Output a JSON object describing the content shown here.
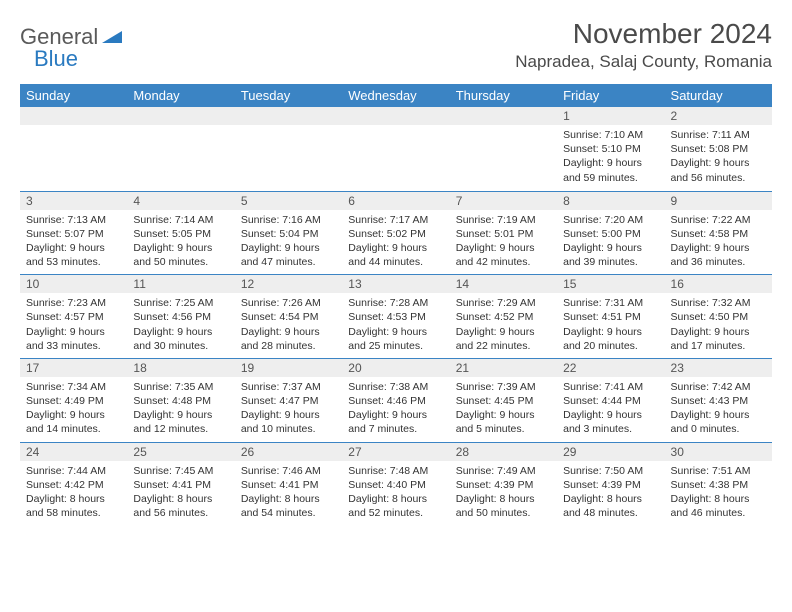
{
  "brand": {
    "part1": "General",
    "part2": "Blue"
  },
  "title": "November 2024",
  "location": "Napradea, Salaj County, Romania",
  "colors": {
    "header_bg": "#3b84c4",
    "header_text": "#ffffff",
    "daynum_bg": "#eeeeee",
    "row_border": "#3b84c4",
    "logo_blue": "#2a7ac0",
    "text": "#333333"
  },
  "weekdays": [
    "Sunday",
    "Monday",
    "Tuesday",
    "Wednesday",
    "Thursday",
    "Friday",
    "Saturday"
  ],
  "weeks": [
    [
      null,
      null,
      null,
      null,
      null,
      {
        "n": "1",
        "sunrise": "Sunrise: 7:10 AM",
        "sunset": "Sunset: 5:10 PM",
        "daylight": "Daylight: 9 hours and 59 minutes."
      },
      {
        "n": "2",
        "sunrise": "Sunrise: 7:11 AM",
        "sunset": "Sunset: 5:08 PM",
        "daylight": "Daylight: 9 hours and 56 minutes."
      }
    ],
    [
      {
        "n": "3",
        "sunrise": "Sunrise: 7:13 AM",
        "sunset": "Sunset: 5:07 PM",
        "daylight": "Daylight: 9 hours and 53 minutes."
      },
      {
        "n": "4",
        "sunrise": "Sunrise: 7:14 AM",
        "sunset": "Sunset: 5:05 PM",
        "daylight": "Daylight: 9 hours and 50 minutes."
      },
      {
        "n": "5",
        "sunrise": "Sunrise: 7:16 AM",
        "sunset": "Sunset: 5:04 PM",
        "daylight": "Daylight: 9 hours and 47 minutes."
      },
      {
        "n": "6",
        "sunrise": "Sunrise: 7:17 AM",
        "sunset": "Sunset: 5:02 PM",
        "daylight": "Daylight: 9 hours and 44 minutes."
      },
      {
        "n": "7",
        "sunrise": "Sunrise: 7:19 AM",
        "sunset": "Sunset: 5:01 PM",
        "daylight": "Daylight: 9 hours and 42 minutes."
      },
      {
        "n": "8",
        "sunrise": "Sunrise: 7:20 AM",
        "sunset": "Sunset: 5:00 PM",
        "daylight": "Daylight: 9 hours and 39 minutes."
      },
      {
        "n": "9",
        "sunrise": "Sunrise: 7:22 AM",
        "sunset": "Sunset: 4:58 PM",
        "daylight": "Daylight: 9 hours and 36 minutes."
      }
    ],
    [
      {
        "n": "10",
        "sunrise": "Sunrise: 7:23 AM",
        "sunset": "Sunset: 4:57 PM",
        "daylight": "Daylight: 9 hours and 33 minutes."
      },
      {
        "n": "11",
        "sunrise": "Sunrise: 7:25 AM",
        "sunset": "Sunset: 4:56 PM",
        "daylight": "Daylight: 9 hours and 30 minutes."
      },
      {
        "n": "12",
        "sunrise": "Sunrise: 7:26 AM",
        "sunset": "Sunset: 4:54 PM",
        "daylight": "Daylight: 9 hours and 28 minutes."
      },
      {
        "n": "13",
        "sunrise": "Sunrise: 7:28 AM",
        "sunset": "Sunset: 4:53 PM",
        "daylight": "Daylight: 9 hours and 25 minutes."
      },
      {
        "n": "14",
        "sunrise": "Sunrise: 7:29 AM",
        "sunset": "Sunset: 4:52 PM",
        "daylight": "Daylight: 9 hours and 22 minutes."
      },
      {
        "n": "15",
        "sunrise": "Sunrise: 7:31 AM",
        "sunset": "Sunset: 4:51 PM",
        "daylight": "Daylight: 9 hours and 20 minutes."
      },
      {
        "n": "16",
        "sunrise": "Sunrise: 7:32 AM",
        "sunset": "Sunset: 4:50 PM",
        "daylight": "Daylight: 9 hours and 17 minutes."
      }
    ],
    [
      {
        "n": "17",
        "sunrise": "Sunrise: 7:34 AM",
        "sunset": "Sunset: 4:49 PM",
        "daylight": "Daylight: 9 hours and 14 minutes."
      },
      {
        "n": "18",
        "sunrise": "Sunrise: 7:35 AM",
        "sunset": "Sunset: 4:48 PM",
        "daylight": "Daylight: 9 hours and 12 minutes."
      },
      {
        "n": "19",
        "sunrise": "Sunrise: 7:37 AM",
        "sunset": "Sunset: 4:47 PM",
        "daylight": "Daylight: 9 hours and 10 minutes."
      },
      {
        "n": "20",
        "sunrise": "Sunrise: 7:38 AM",
        "sunset": "Sunset: 4:46 PM",
        "daylight": "Daylight: 9 hours and 7 minutes."
      },
      {
        "n": "21",
        "sunrise": "Sunrise: 7:39 AM",
        "sunset": "Sunset: 4:45 PM",
        "daylight": "Daylight: 9 hours and 5 minutes."
      },
      {
        "n": "22",
        "sunrise": "Sunrise: 7:41 AM",
        "sunset": "Sunset: 4:44 PM",
        "daylight": "Daylight: 9 hours and 3 minutes."
      },
      {
        "n": "23",
        "sunrise": "Sunrise: 7:42 AM",
        "sunset": "Sunset: 4:43 PM",
        "daylight": "Daylight: 9 hours and 0 minutes."
      }
    ],
    [
      {
        "n": "24",
        "sunrise": "Sunrise: 7:44 AM",
        "sunset": "Sunset: 4:42 PM",
        "daylight": "Daylight: 8 hours and 58 minutes."
      },
      {
        "n": "25",
        "sunrise": "Sunrise: 7:45 AM",
        "sunset": "Sunset: 4:41 PM",
        "daylight": "Daylight: 8 hours and 56 minutes."
      },
      {
        "n": "26",
        "sunrise": "Sunrise: 7:46 AM",
        "sunset": "Sunset: 4:41 PM",
        "daylight": "Daylight: 8 hours and 54 minutes."
      },
      {
        "n": "27",
        "sunrise": "Sunrise: 7:48 AM",
        "sunset": "Sunset: 4:40 PM",
        "daylight": "Daylight: 8 hours and 52 minutes."
      },
      {
        "n": "28",
        "sunrise": "Sunrise: 7:49 AM",
        "sunset": "Sunset: 4:39 PM",
        "daylight": "Daylight: 8 hours and 50 minutes."
      },
      {
        "n": "29",
        "sunrise": "Sunrise: 7:50 AM",
        "sunset": "Sunset: 4:39 PM",
        "daylight": "Daylight: 8 hours and 48 minutes."
      },
      {
        "n": "30",
        "sunrise": "Sunrise: 7:51 AM",
        "sunset": "Sunset: 4:38 PM",
        "daylight": "Daylight: 8 hours and 46 minutes."
      }
    ]
  ]
}
